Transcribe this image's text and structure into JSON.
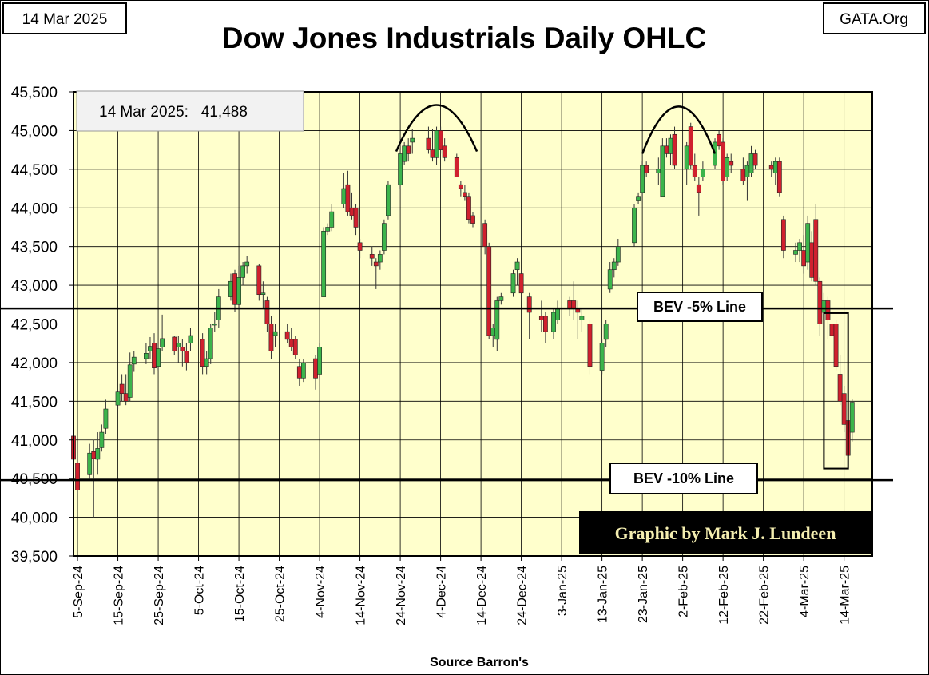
{
  "header": {
    "date_label": "14 Mar 2025",
    "title": "Dow Jones Industrials Daily OHLC",
    "site": "GATA.Org"
  },
  "info_box": {
    "text": "14 Mar 2025:   41,488"
  },
  "credit": "Graphic by Mark J. Lundeen",
  "source": "Source Barron's",
  "colors": {
    "plot_bg": "#ffffcc",
    "up": "#3cb44b",
    "down": "#d0202e",
    "grid": "#000000"
  },
  "chart_data": {
    "type": "candlestick",
    "title": "Dow Jones Industrials Daily OHLC",
    "ylim": [
      39500,
      45500
    ],
    "yticks": [
      39500,
      40000,
      40500,
      41000,
      41500,
      42000,
      42500,
      43000,
      43500,
      44000,
      44500,
      45000,
      45500
    ],
    "ytick_labels": [
      "39,500",
      "40,000",
      "40,500",
      "41,000",
      "41,500",
      "42,000",
      "42,500",
      "43,000",
      "43,500",
      "44,000",
      "44,500",
      "45,000",
      "45,500"
    ],
    "x_range": [
      "2024-09-04",
      "2025-03-21"
    ],
    "xtick_dates": [
      "2024-09-05",
      "2024-09-15",
      "2024-09-25",
      "2024-10-05",
      "2024-10-15",
      "2024-10-25",
      "2024-11-04",
      "2024-11-14",
      "2024-11-24",
      "2024-12-04",
      "2024-12-14",
      "2024-12-24",
      "2025-01-03",
      "2025-01-13",
      "2025-01-23",
      "2025-02-02",
      "2025-02-12",
      "2025-02-22",
      "2025-03-04",
      "2025-03-14"
    ],
    "xtick_labels": [
      "5-Sep-24",
      "15-Sep-24",
      "25-Sep-24",
      "5-Oct-24",
      "15-Oct-24",
      "25-Oct-24",
      "4-Nov-24",
      "14-Nov-24",
      "24-Nov-24",
      "4-Dec-24",
      "14-Dec-24",
      "24-Dec-24",
      "3-Jan-25",
      "13-Jan-25",
      "23-Jan-25",
      "2-Feb-25",
      "12-Feb-25",
      "22-Feb-25",
      "4-Mar-25",
      "14-Mar-25"
    ],
    "grid": true,
    "reference_lines": [
      {
        "label": "BEV -5% Line",
        "value": 42700
      },
      {
        "label": "BEV -10% Line",
        "value": 40480
      }
    ],
    "annotations": {
      "arcs": [
        {
          "start": "2024-11-23",
          "end": "2024-12-13",
          "base": 44730,
          "peak": 45330
        },
        {
          "start": "2025-01-23",
          "end": "2025-02-10",
          "base": 44700,
          "peak": 45310
        }
      ],
      "highlight_box": {
        "start": "2025-03-09",
        "end": "2025-03-15",
        "low": 40630,
        "high": 42640
      }
    },
    "candles": [
      {
        "date": "2024-09-04",
        "o": 41050,
        "h": 41120,
        "l": 40620,
        "c": 40750
      },
      {
        "date": "2024-09-05",
        "o": 40700,
        "h": 40980,
        "l": 40300,
        "c": 40350
      },
      {
        "date": "2024-09-08",
        "o": 40550,
        "h": 40950,
        "l": 40480,
        "c": 40830
      },
      {
        "date": "2024-09-09",
        "o": 40850,
        "h": 41000,
        "l": 39990,
        "c": 40760
      },
      {
        "date": "2024-09-10",
        "o": 40750,
        "h": 41100,
        "l": 40550,
        "c": 40890
      },
      {
        "date": "2024-09-11",
        "o": 40900,
        "h": 41200,
        "l": 40850,
        "c": 41100
      },
      {
        "date": "2024-09-12",
        "o": 41150,
        "h": 41520,
        "l": 41080,
        "c": 41400
      },
      {
        "date": "2024-09-15",
        "o": 41450,
        "h": 41650,
        "l": 41400,
        "c": 41620
      },
      {
        "date": "2024-09-16",
        "o": 41720,
        "h": 41850,
        "l": 41500,
        "c": 41600
      },
      {
        "date": "2024-09-17",
        "o": 41600,
        "h": 41850,
        "l": 41450,
        "c": 41500
      },
      {
        "date": "2024-09-18",
        "o": 41550,
        "h": 42130,
        "l": 41500,
        "c": 41970
      },
      {
        "date": "2024-09-19",
        "o": 41980,
        "h": 42150,
        "l": 41880,
        "c": 42070
      },
      {
        "date": "2024-09-22",
        "o": 42050,
        "h": 42250,
        "l": 41980,
        "c": 42120
      },
      {
        "date": "2024-09-23",
        "o": 42150,
        "h": 42330,
        "l": 42050,
        "c": 42210
      },
      {
        "date": "2024-09-24",
        "o": 42250,
        "h": 42380,
        "l": 41850,
        "c": 41930
      },
      {
        "date": "2024-09-25",
        "o": 41950,
        "h": 42250,
        "l": 41900,
        "c": 42180
      },
      {
        "date": "2024-09-26",
        "o": 42200,
        "h": 42620,
        "l": 42150,
        "c": 42310
      },
      {
        "date": "2024-09-29",
        "o": 42330,
        "h": 42350,
        "l": 42100,
        "c": 42150
      },
      {
        "date": "2024-09-30",
        "o": 42200,
        "h": 42350,
        "l": 42000,
        "c": 42250
      },
      {
        "date": "2024-10-01",
        "o": 42200,
        "h": 42300,
        "l": 41950,
        "c": 42150
      },
      {
        "date": "2024-10-02",
        "o": 42150,
        "h": 42250,
        "l": 41900,
        "c": 42000
      },
      {
        "date": "2024-10-03",
        "o": 42250,
        "h": 42450,
        "l": 42150,
        "c": 42350
      },
      {
        "date": "2024-10-06",
        "o": 42300,
        "h": 42380,
        "l": 41850,
        "c": 41950
      },
      {
        "date": "2024-10-07",
        "o": 41950,
        "h": 42150,
        "l": 41850,
        "c": 42050
      },
      {
        "date": "2024-10-08",
        "o": 42050,
        "h": 42500,
        "l": 41980,
        "c": 42450
      },
      {
        "date": "2024-10-09",
        "o": 42500,
        "h": 42650,
        "l": 42400,
        "c": 42500
      },
      {
        "date": "2024-10-10",
        "o": 42550,
        "h": 42950,
        "l": 42450,
        "c": 42850
      },
      {
        "date": "2024-10-13",
        "o": 42850,
        "h": 43150,
        "l": 42800,
        "c": 43050
      },
      {
        "date": "2024-10-14",
        "o": 43150,
        "h": 43200,
        "l": 42650,
        "c": 42750
      },
      {
        "date": "2024-10-15",
        "o": 42750,
        "h": 43250,
        "l": 42700,
        "c": 43100
      },
      {
        "date": "2024-10-16",
        "o": 43100,
        "h": 43300,
        "l": 43000,
        "c": 43250
      },
      {
        "date": "2024-10-17",
        "o": 43250,
        "h": 43380,
        "l": 43150,
        "c": 43300
      },
      {
        "date": "2024-10-20",
        "o": 43250,
        "h": 43280,
        "l": 42800,
        "c": 42880
      },
      {
        "date": "2024-10-21",
        "o": 42880,
        "h": 43050,
        "l": 42700,
        "c": 42900
      },
      {
        "date": "2024-10-22",
        "o": 42800,
        "h": 42850,
        "l": 42400,
        "c": 42500
      },
      {
        "date": "2024-10-23",
        "o": 42500,
        "h": 42600,
        "l": 42050,
        "c": 42150
      },
      {
        "date": "2024-10-24",
        "o": 42350,
        "h": 42500,
        "l": 42200,
        "c": 42400
      },
      {
        "date": "2024-10-27",
        "o": 42400,
        "h": 42500,
        "l": 42250,
        "c": 42300
      },
      {
        "date": "2024-10-28",
        "o": 42300,
        "h": 42450,
        "l": 42150,
        "c": 42200
      },
      {
        "date": "2024-10-29",
        "o": 42300,
        "h": 42350,
        "l": 42050,
        "c": 42100
      },
      {
        "date": "2024-10-30",
        "o": 41950,
        "h": 42050,
        "l": 41700,
        "c": 41800
      },
      {
        "date": "2024-10-31",
        "o": 41800,
        "h": 42050,
        "l": 41750,
        "c": 42000
      },
      {
        "date": "2024-11-03",
        "o": 42050,
        "h": 42100,
        "l": 41650,
        "c": 41800
      },
      {
        "date": "2024-11-04",
        "o": 41850,
        "h": 42250,
        "l": 41800,
        "c": 42200
      },
      {
        "date": "2024-11-05",
        "o": 42850,
        "h": 43750,
        "l": 42850,
        "c": 43700
      },
      {
        "date": "2024-11-06",
        "o": 43700,
        "h": 43800,
        "l": 43650,
        "c": 43750
      },
      {
        "date": "2024-11-07",
        "o": 43750,
        "h": 44050,
        "l": 43700,
        "c": 43950
      },
      {
        "date": "2024-11-10",
        "o": 44050,
        "h": 44450,
        "l": 44000,
        "c": 44250
      },
      {
        "date": "2024-11-11",
        "o": 44300,
        "h": 44480,
        "l": 43900,
        "c": 43950
      },
      {
        "date": "2024-11-12",
        "o": 44000,
        "h": 44200,
        "l": 43850,
        "c": 43900
      },
      {
        "date": "2024-11-13",
        "o": 44000,
        "h": 44050,
        "l": 43650,
        "c": 43750
      },
      {
        "date": "2024-11-14",
        "o": 43550,
        "h": 43600,
        "l": 43350,
        "c": 43450
      },
      {
        "date": "2024-11-17",
        "o": 43400,
        "h": 43500,
        "l": 43250,
        "c": 43350
      },
      {
        "date": "2024-11-18",
        "o": 43300,
        "h": 43350,
        "l": 42950,
        "c": 43250
      },
      {
        "date": "2024-11-19",
        "o": 43300,
        "h": 43450,
        "l": 43200,
        "c": 43400
      },
      {
        "date": "2024-11-20",
        "o": 43450,
        "h": 43850,
        "l": 43400,
        "c": 43800
      },
      {
        "date": "2024-11-21",
        "o": 43900,
        "h": 44350,
        "l": 43850,
        "c": 44300
      },
      {
        "date": "2024-11-24",
        "o": 44300,
        "h": 44750,
        "l": 44250,
        "c": 44700
      },
      {
        "date": "2024-11-25",
        "o": 44600,
        "h": 44850,
        "l": 44550,
        "c": 44800
      },
      {
        "date": "2024-11-26",
        "o": 44800,
        "h": 44900,
        "l": 44600,
        "c": 44700
      },
      {
        "date": "2024-11-27",
        "o": 44850,
        "h": 45020,
        "l": 44700,
        "c": 44900
      },
      {
        "date": "2024-12-01",
        "o": 44900,
        "h": 45050,
        "l": 44700,
        "c": 44750
      },
      {
        "date": "2024-12-02",
        "o": 44750,
        "h": 45020,
        "l": 44600,
        "c": 44650
      },
      {
        "date": "2024-12-03",
        "o": 44650,
        "h": 45050,
        "l": 44550,
        "c": 45000
      },
      {
        "date": "2024-12-04",
        "o": 45000,
        "h": 45050,
        "l": 44700,
        "c": 44750
      },
      {
        "date": "2024-12-05",
        "o": 44800,
        "h": 44900,
        "l": 44600,
        "c": 44650
      },
      {
        "date": "2024-12-08",
        "o": 44650,
        "h": 44700,
        "l": 44400,
        "c": 44400
      },
      {
        "date": "2024-12-09",
        "o": 44300,
        "h": 44350,
        "l": 44150,
        "c": 44250
      },
      {
        "date": "2024-12-10",
        "o": 44200,
        "h": 44300,
        "l": 44100,
        "c": 44150
      },
      {
        "date": "2024-12-11",
        "o": 44150,
        "h": 44200,
        "l": 43800,
        "c": 43850
      },
      {
        "date": "2024-12-12",
        "o": 43900,
        "h": 43950,
        "l": 43750,
        "c": 43800
      },
      {
        "date": "2024-12-15",
        "o": 43800,
        "h": 43850,
        "l": 43400,
        "c": 43500
      },
      {
        "date": "2024-12-16",
        "o": 43500,
        "h": 43550,
        "l": 42300,
        "c": 42350
      },
      {
        "date": "2024-12-17",
        "o": 42350,
        "h": 42500,
        "l": 42200,
        "c": 42450
      },
      {
        "date": "2024-12-18",
        "o": 42300,
        "h": 42850,
        "l": 42150,
        "c": 42800
      },
      {
        "date": "2024-12-19",
        "o": 42800,
        "h": 42900,
        "l": 42750,
        "c": 42850
      },
      {
        "date": "2024-12-22",
        "o": 42900,
        "h": 43200,
        "l": 42850,
        "c": 43150
      },
      {
        "date": "2024-12-23",
        "o": 43200,
        "h": 43350,
        "l": 43000,
        "c": 43300
      },
      {
        "date": "2024-12-24",
        "o": 43150,
        "h": 43200,
        "l": 42800,
        "c": 42900
      },
      {
        "date": "2024-12-26",
        "o": 42850,
        "h": 42900,
        "l": 42300,
        "c": 42650
      },
      {
        "date": "2024-12-29",
        "o": 42600,
        "h": 42800,
        "l": 42400,
        "c": 42550
      },
      {
        "date": "2024-12-30",
        "o": 42600,
        "h": 42650,
        "l": 42250,
        "c": 42400
      },
      {
        "date": "2025-01-01",
        "o": 42400,
        "h": 42700,
        "l": 42300,
        "c": 42650
      },
      {
        "date": "2025-01-02",
        "o": 42550,
        "h": 42800,
        "l": 42500,
        "c": 42700
      },
      {
        "date": "2025-01-05",
        "o": 42800,
        "h": 42850,
        "l": 42600,
        "c": 42700
      },
      {
        "date": "2025-01-06",
        "o": 42800,
        "h": 43050,
        "l": 42550,
        "c": 42700
      },
      {
        "date": "2025-01-07",
        "o": 42700,
        "h": 42800,
        "l": 42300,
        "c": 42650
      },
      {
        "date": "2025-01-08",
        "o": 42550,
        "h": 42700,
        "l": 42400,
        "c": 42600
      },
      {
        "date": "2025-01-10",
        "o": 42500,
        "h": 42550,
        "l": 41850,
        "c": 41950
      },
      {
        "date": "2025-01-13",
        "o": 41900,
        "h": 42300,
        "l": 41850,
        "c": 42250
      },
      {
        "date": "2025-01-14",
        "o": 42300,
        "h": 42550,
        "l": 42200,
        "c": 42500
      },
      {
        "date": "2025-01-15",
        "o": 42950,
        "h": 43300,
        "l": 42900,
        "c": 43200
      },
      {
        "date": "2025-01-16",
        "o": 43200,
        "h": 43350,
        "l": 43100,
        "c": 43300
      },
      {
        "date": "2025-01-17",
        "o": 43300,
        "h": 43600,
        "l": 43250,
        "c": 43500
      },
      {
        "date": "2025-01-21",
        "o": 43550,
        "h": 44050,
        "l": 43500,
        "c": 44000
      },
      {
        "date": "2025-01-22",
        "o": 44100,
        "h": 44200,
        "l": 44050,
        "c": 44150
      },
      {
        "date": "2025-01-23",
        "o": 44200,
        "h": 44600,
        "l": 44100,
        "c": 44550
      },
      {
        "date": "2025-01-24",
        "o": 44550,
        "h": 44600,
        "l": 44400,
        "c": 44450
      },
      {
        "date": "2025-01-27",
        "o": 44450,
        "h": 44650,
        "l": 44300,
        "c": 44500
      },
      {
        "date": "2025-01-28",
        "o": 44150,
        "h": 44900,
        "l": 44150,
        "c": 44800
      },
      {
        "date": "2025-01-29",
        "o": 44800,
        "h": 44900,
        "l": 44650,
        "c": 44700
      },
      {
        "date": "2025-01-30",
        "o": 44700,
        "h": 44950,
        "l": 44550,
        "c": 44900
      },
      {
        "date": "2025-01-31",
        "o": 44950,
        "h": 45050,
        "l": 44500,
        "c": 44550
      },
      {
        "date": "2025-02-03",
        "o": 44500,
        "h": 44850,
        "l": 44300,
        "c": 44800
      },
      {
        "date": "2025-02-04",
        "o": 45050,
        "h": 45100,
        "l": 44500,
        "c": 44550
      },
      {
        "date": "2025-02-05",
        "o": 44550,
        "h": 44700,
        "l": 44350,
        "c": 44400
      },
      {
        "date": "2025-02-06",
        "o": 44300,
        "h": 44400,
        "l": 43900,
        "c": 44200
      },
      {
        "date": "2025-02-07",
        "o": 44400,
        "h": 44600,
        "l": 44350,
        "c": 44500
      },
      {
        "date": "2025-02-10",
        "o": 44550,
        "h": 44900,
        "l": 44500,
        "c": 44850
      },
      {
        "date": "2025-02-11",
        "o": 44950,
        "h": 45000,
        "l": 44750,
        "c": 44800
      },
      {
        "date": "2025-02-12",
        "o": 44850,
        "h": 44900,
        "l": 44300,
        "c": 44350
      },
      {
        "date": "2025-02-13",
        "o": 44400,
        "h": 44700,
        "l": 44350,
        "c": 44650
      },
      {
        "date": "2025-02-14",
        "o": 44600,
        "h": 44700,
        "l": 44450,
        "c": 44550
      },
      {
        "date": "2025-02-17",
        "o": 44500,
        "h": 44650,
        "l": 44300,
        "c": 44350
      },
      {
        "date": "2025-02-18",
        "o": 44400,
        "h": 44600,
        "l": 44100,
        "c": 44550
      },
      {
        "date": "2025-02-19",
        "o": 44450,
        "h": 44800,
        "l": 44400,
        "c": 44700
      },
      {
        "date": "2025-02-20",
        "o": 44700,
        "h": 44750,
        "l": 44500,
        "c": 44550
      },
      {
        "date": "2025-02-24",
        "o": 44550,
        "h": 44600,
        "l": 44400,
        "c": 44500
      },
      {
        "date": "2025-02-25",
        "o": 44450,
        "h": 44650,
        "l": 44300,
        "c": 44600
      },
      {
        "date": "2025-02-26",
        "o": 44600,
        "h": 44650,
        "l": 44150,
        "c": 44200
      },
      {
        "date": "2025-02-27",
        "o": 43850,
        "h": 43900,
        "l": 43350,
        "c": 43450
      },
      {
        "date": "2025-03-02",
        "o": 43400,
        "h": 43550,
        "l": 43300,
        "c": 43450
      },
      {
        "date": "2025-03-03",
        "o": 43450,
        "h": 43600,
        "l": 43300,
        "c": 43550
      },
      {
        "date": "2025-03-04",
        "o": 43450,
        "h": 43650,
        "l": 43150,
        "c": 43250
      },
      {
        "date": "2025-03-05",
        "o": 43300,
        "h": 43900,
        "l": 43200,
        "c": 43800
      },
      {
        "date": "2025-03-06",
        "o": 43550,
        "h": 43700,
        "l": 43050,
        "c": 43100
      },
      {
        "date": "2025-03-07",
        "o": 43850,
        "h": 44050,
        "l": 43000,
        "c": 43050
      },
      {
        "date": "2025-03-08",
        "o": 43050,
        "h": 43100,
        "l": 42350,
        "c": 42500
      },
      {
        "date": "2025-03-09",
        "o": 42650,
        "h": 42900,
        "l": 42400,
        "c": 42800
      },
      {
        "date": "2025-03-10",
        "o": 42800,
        "h": 42850,
        "l": 42300,
        "c": 42550
      },
      {
        "date": "2025-03-11",
        "o": 42500,
        "h": 42550,
        "l": 42200,
        "c": 42350
      },
      {
        "date": "2025-03-12",
        "o": 42500,
        "h": 42550,
        "l": 41900,
        "c": 41950
      },
      {
        "date": "2025-03-13",
        "o": 41850,
        "h": 42100,
        "l": 41450,
        "c": 41500
      },
      {
        "date": "2025-03-14",
        "o": 41600,
        "h": 41700,
        "l": 41100,
        "c": 41200
      },
      {
        "date": "2025-03-15",
        "o": 41250,
        "h": 41350,
        "l": 40650,
        "c": 40800
      },
      {
        "date": "2025-03-16",
        "o": 41100,
        "h": 41530,
        "l": 40980,
        "c": 41488
      }
    ]
  }
}
